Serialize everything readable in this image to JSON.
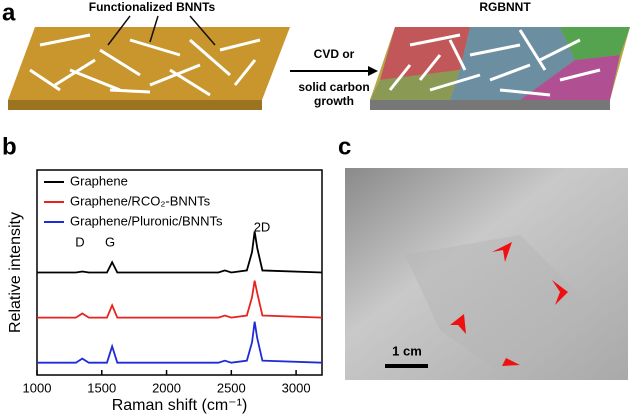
{
  "panels": {
    "a": {
      "label": "a",
      "left_label": "Functionalized BNNTs",
      "right_label": "RGBNNT",
      "arrow_text": [
        "CVD or",
        "solid carbon",
        "growth"
      ]
    },
    "b": {
      "label": "b"
    },
    "c": {
      "label": "c",
      "scale_bar": "1 cm"
    }
  },
  "chart_data": {
    "type": "line",
    "xlabel": "Raman shift (cm⁻¹)",
    "ylabel": "Relative intensity",
    "annotations": [
      "D",
      "G",
      "2D"
    ],
    "x": [
      1000,
      1300,
      1350,
      1400,
      1540,
      1580,
      1620,
      2000,
      2400,
      2450,
      2500,
      2620,
      2660,
      2680,
      2700,
      2740,
      3200
    ],
    "series": [
      {
        "name": "Graphene",
        "color": "#000000",
        "values": [
          0.5,
          0.5,
          0.505,
          0.5,
          0.5,
          0.55,
          0.5,
          0.5,
          0.5,
          0.51,
          0.5,
          0.51,
          0.6,
          0.7,
          0.62,
          0.51,
          0.5
        ]
      },
      {
        "name": "Graphene/RCO₂-BNNTs",
        "color": "#e8231f",
        "values": [
          0.28,
          0.28,
          0.3,
          0.28,
          0.28,
          0.34,
          0.28,
          0.28,
          0.28,
          0.29,
          0.28,
          0.29,
          0.38,
          0.46,
          0.4,
          0.29,
          0.28
        ]
      },
      {
        "name": "Graphene/Pluronic/BNNTs",
        "color": "#1f2bd6",
        "values": [
          0.06,
          0.06,
          0.08,
          0.06,
          0.06,
          0.14,
          0.06,
          0.06,
          0.06,
          0.07,
          0.06,
          0.07,
          0.16,
          0.26,
          0.18,
          0.07,
          0.06
        ]
      }
    ],
    "xlim": [
      1000,
      3200
    ],
    "xticks": [
      1000,
      1500,
      2000,
      2500,
      3000
    ],
    "ylim": [
      0,
      1
    ]
  }
}
